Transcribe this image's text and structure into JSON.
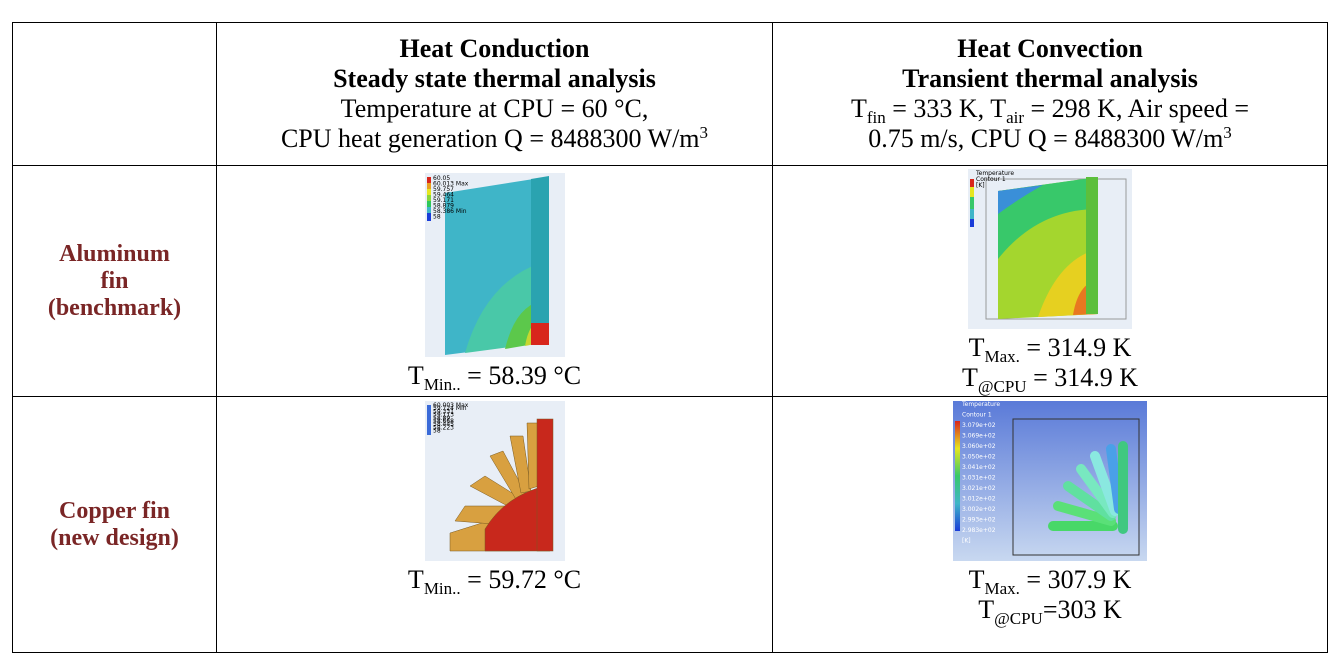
{
  "header": {
    "conduction": {
      "title": "Heat Conduction",
      "subtitle": "Steady state thermal analysis",
      "line1": "Temperature at CPU = 60 °C,",
      "line2": "CPU heat generation Q = 8488300 W/m",
      "line2_sup": "3"
    },
    "convection": {
      "title": "Heat Convection",
      "subtitle": "Transient thermal analysis",
      "line1": [
        "T",
        "fin",
        " = 333 K, T",
        "air",
        " = 298 K, Air speed ="
      ],
      "line2": "0.75 m/s, CPU Q = 8488300 W/m",
      "line2_sup": "3"
    }
  },
  "rows": [
    {
      "label": [
        "Aluminum",
        "fin",
        "(benchmark)"
      ],
      "conduction_legend": [
        "60.05",
        "60.013 Max",
        "59.757",
        "59.464",
        "59.171",
        "58.879",
        "58.386 Min",
        "58"
      ],
      "conduction_result": [
        "T",
        "Min..",
        "= 58.39 °C"
      ],
      "convection_legend": [
        "Temperature",
        "Contour 1",
        "[K]"
      ],
      "convection_results": [
        [
          "T",
          "Max.",
          "= 314.9 K"
        ],
        [
          "T",
          "@CPU",
          "= 314.9 K"
        ]
      ]
    },
    {
      "label": [
        "Copper fin",
        "(new design)"
      ],
      "conduction_legend": [
        "60.003 Max",
        "59.724 Min",
        "59.331",
        "59.113",
        "58.89",
        "58.668",
        "58.445",
        "58.223",
        "58"
      ],
      "conduction_result": [
        "T",
        "Min..",
        "= 59.72 °C"
      ],
      "convection_legend": [
        "Temperature",
        "Contour 1",
        "3.079e+02",
        "3.069e+02",
        "3.060e+02",
        "3.050e+02",
        "3.041e+02",
        "3.031e+02",
        "3.021e+02",
        "3.012e+02",
        "3.002e+02",
        "2.993e+02",
        "2.983e+02",
        "[K]"
      ],
      "convection_results": [
        [
          "T",
          "Max.",
          "= 307.9 K"
        ],
        [
          "T",
          "@CPU",
          "=303 K"
        ]
      ]
    }
  ]
}
